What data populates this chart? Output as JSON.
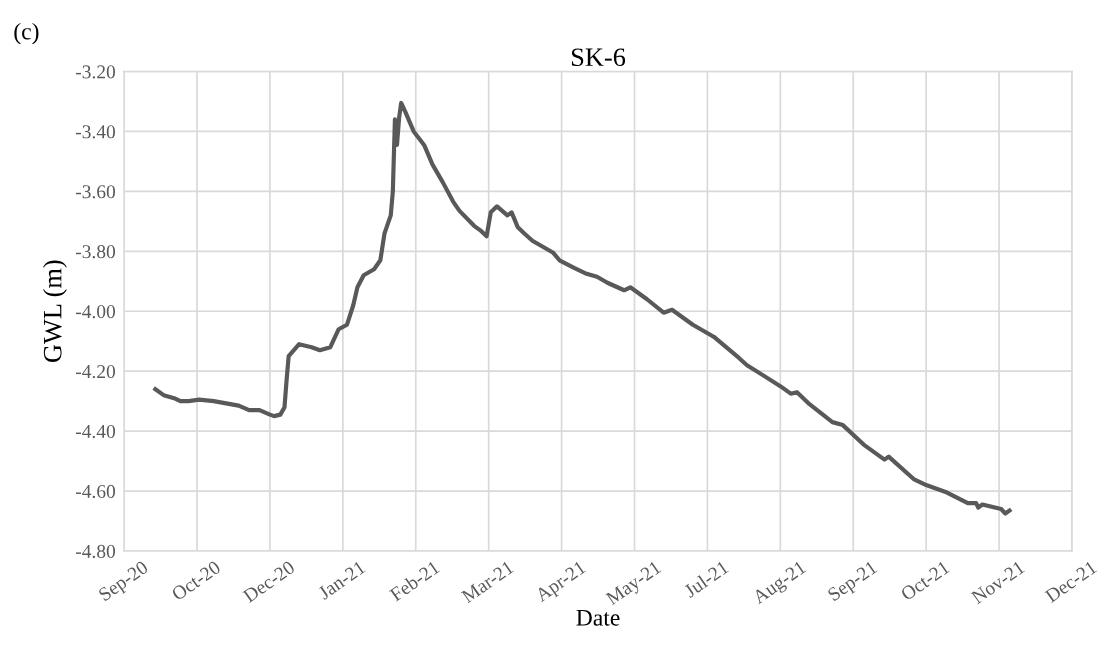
{
  "chart_data": {
    "type": "line",
    "title": "SK-6",
    "xlabel": "Date",
    "ylabel": "GWL (m)",
    "annotations": [
      "(c)"
    ],
    "grid": true,
    "marker": "none",
    "line_style": "solid",
    "ylim": [
      -4.8,
      -3.2
    ],
    "yticks": [
      {
        "value": -4.8,
        "label": "-4.80"
      },
      {
        "value": -4.6,
        "label": "-4.60"
      },
      {
        "value": -4.4,
        "label": "-4.40"
      },
      {
        "value": -4.2,
        "label": "-4.20"
      },
      {
        "value": -4.0,
        "label": "-4.00"
      },
      {
        "value": -3.8,
        "label": "-3.80"
      },
      {
        "value": -3.6,
        "label": "-3.60"
      },
      {
        "value": -3.4,
        "label": "-3.40"
      },
      {
        "value": -3.2,
        "label": "-3.20"
      }
    ],
    "xlim": [
      "2020-09-25",
      "2021-12-24"
    ],
    "xticks": [
      {
        "value": "2020-09-25",
        "label": "Sep-20"
      },
      {
        "value": "2020-10-30",
        "label": "Oct-20"
      },
      {
        "value": "2020-12-04",
        "label": "Dec-20"
      },
      {
        "value": "2021-01-08",
        "label": "Jan-21"
      },
      {
        "value": "2021-02-12",
        "label": "Feb-21"
      },
      {
        "value": "2021-03-19",
        "label": "Mar-21"
      },
      {
        "value": "2021-04-23",
        "label": "Apr-21"
      },
      {
        "value": "2021-05-28",
        "label": "May-21"
      },
      {
        "value": "2021-07-02",
        "label": "Jul-21"
      },
      {
        "value": "2021-08-06",
        "label": "Aug-21"
      },
      {
        "value": "2021-09-10",
        "label": "Sep-21"
      },
      {
        "value": "2021-10-15",
        "label": "Oct-21"
      },
      {
        "value": "2021-11-19",
        "label": "Nov-21"
      },
      {
        "value": "2021-12-24",
        "label": "Dec-21"
      }
    ],
    "series": [
      {
        "color": "#595959",
        "x": [
          "2020-10-10",
          "2020-10-14",
          "2020-10-19",
          "2020-10-22",
          "2020-10-26",
          "2020-10-31",
          "2020-11-07",
          "2020-11-15",
          "2020-11-19",
          "2020-11-24",
          "2020-11-29",
          "2020-12-04",
          "2020-12-06",
          "2020-12-09",
          "2020-12-11",
          "2020-12-12",
          "2020-12-13",
          "2020-12-18",
          "2020-12-24",
          "2020-12-28",
          "2021-01-02",
          "2021-01-06",
          "2021-01-10",
          "2021-01-13",
          "2021-01-15",
          "2021-01-18",
          "2021-01-23",
          "2021-01-26",
          "2021-01-28",
          "2021-01-31",
          "2021-02-01",
          "2021-02-02",
          "2021-02-03",
          "2021-02-04",
          "2021-02-05",
          "2021-02-07",
          "2021-02-11",
          "2021-02-16",
          "2021-02-20",
          "2021-02-25",
          "2021-03-02",
          "2021-03-05",
          "2021-03-12",
          "2021-03-15",
          "2021-03-18",
          "2021-03-20",
          "2021-03-23",
          "2021-03-28",
          "2021-03-30",
          "2021-04-02",
          "2021-04-05",
          "2021-04-09",
          "2021-04-14",
          "2021-04-19",
          "2021-04-22",
          "2021-04-29",
          "2021-05-05",
          "2021-05-10",
          "2021-05-15",
          "2021-05-23",
          "2021-05-26",
          "2021-05-29",
          "2021-06-03",
          "2021-06-11",
          "2021-06-15",
          "2021-06-25",
          "2021-07-05",
          "2021-07-17",
          "2021-07-21",
          "2021-08-06",
          "2021-08-11",
          "2021-08-14",
          "2021-08-20",
          "2021-08-31",
          "2021-09-05",
          "2021-09-15",
          "2021-09-25",
          "2021-09-27",
          "2021-10-09",
          "2021-10-15",
          "2021-10-25",
          "2021-11-04",
          "2021-11-08",
          "2021-11-09",
          "2021-11-11",
          "2021-11-20",
          "2021-11-22",
          "2021-11-24"
        ],
        "values": [
          -4.26,
          -4.28,
          -4.29,
          -4.3,
          -4.3,
          -4.295,
          -4.3,
          -4.31,
          -4.315,
          -4.33,
          -4.33,
          -4.345,
          -4.35,
          -4.345,
          -4.32,
          -4.23,
          -4.15,
          -4.11,
          -4.12,
          -4.13,
          -4.12,
          -4.06,
          -4.045,
          -3.98,
          -3.92,
          -3.88,
          -3.86,
          -3.83,
          -3.74,
          -3.68,
          -3.6,
          -3.36,
          -3.445,
          -3.355,
          -3.305,
          -3.335,
          -3.4,
          -3.445,
          -3.51,
          -3.57,
          -3.635,
          -3.665,
          -3.715,
          -3.73,
          -3.75,
          -3.67,
          -3.65,
          -3.68,
          -3.67,
          -3.72,
          -3.74,
          -3.765,
          -3.785,
          -3.805,
          -3.83,
          -3.855,
          -3.875,
          -3.885,
          -3.905,
          -3.93,
          -3.92,
          -3.935,
          -3.96,
          -4.005,
          -3.995,
          -4.045,
          -4.085,
          -4.155,
          -4.18,
          -4.25,
          -4.275,
          -4.27,
          -4.31,
          -4.37,
          -4.38,
          -4.445,
          -4.495,
          -4.485,
          -4.56,
          -4.58,
          -4.605,
          -4.64,
          -4.64,
          -4.655,
          -4.645,
          -4.66,
          -4.675,
          -4.665
        ]
      }
    ]
  }
}
